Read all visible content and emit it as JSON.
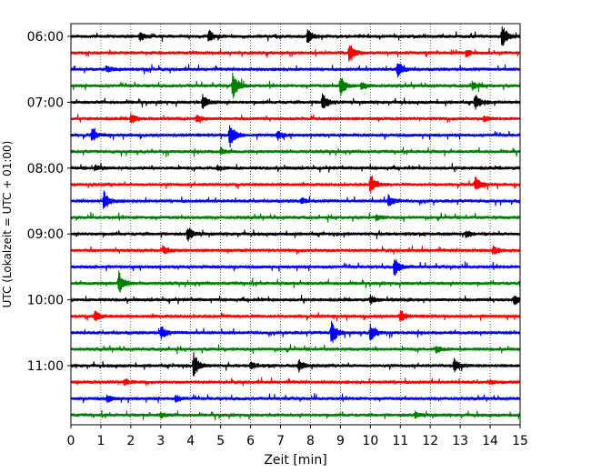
{
  "chart_data": {
    "type": "line",
    "title": "",
    "xlabel": "Zeit  [min]",
    "ylabel": "UTC (Lokalzeit = UTC + 01:00)",
    "xlim": [
      0,
      15
    ],
    "x_ticks": [
      "0",
      "1",
      "2",
      "3",
      "4",
      "5",
      "6",
      "7",
      "8",
      "9",
      "10",
      "11",
      "12",
      "13",
      "14",
      "15"
    ],
    "y_ticks": [
      "06:00",
      "07:00",
      "08:00",
      "09:00",
      "10:00",
      "11:00"
    ],
    "grid": "vertical dotted at each minute",
    "row_interval_min": 15,
    "first_row": "06:00",
    "colors": [
      "#000000",
      "#ff0000",
      "#0000ff",
      "#008000"
    ],
    "rows": [
      {
        "time": "06:00",
        "color": "#000000",
        "events": [
          {
            "t": 4.6,
            "a": 7
          },
          {
            "t": 7.9,
            "a": 8
          },
          {
            "t": 14.4,
            "a": 13
          },
          {
            "t": 2.3,
            "a": 5
          }
        ]
      },
      {
        "time": "06:15",
        "color": "#ff0000",
        "events": [
          {
            "t": 9.3,
            "a": 12
          },
          {
            "t": 13.2,
            "a": 4
          }
        ]
      },
      {
        "time": "06:30",
        "color": "#0000ff",
        "events": [
          {
            "t": 10.9,
            "a": 9
          },
          {
            "t": 1.2,
            "a": 3
          }
        ]
      },
      {
        "time": "06:45",
        "color": "#008000",
        "events": [
          {
            "t": 5.4,
            "a": 16
          },
          {
            "t": 9.0,
            "a": 12
          },
          {
            "t": 9.7,
            "a": 5
          },
          {
            "t": 13.4,
            "a": 5
          }
        ]
      },
      {
        "time": "07:00",
        "color": "#000000",
        "events": [
          {
            "t": 4.4,
            "a": 8
          },
          {
            "t": 8.4,
            "a": 10
          },
          {
            "t": 13.5,
            "a": 9
          }
        ]
      },
      {
        "time": "07:15",
        "color": "#ff0000",
        "events": [
          {
            "t": 2.0,
            "a": 6
          },
          {
            "t": 4.2,
            "a": 4
          },
          {
            "t": 13.8,
            "a": 3
          }
        ]
      },
      {
        "time": "07:30",
        "color": "#0000ff",
        "events": [
          {
            "t": 0.7,
            "a": 8
          },
          {
            "t": 5.3,
            "a": 15
          },
          {
            "t": 6.9,
            "a": 5
          }
        ]
      },
      {
        "time": "07:45",
        "color": "#008000",
        "events": [
          {
            "t": 5.0,
            "a": 4
          }
        ]
      },
      {
        "time": "08:00",
        "color": "#000000",
        "events": [
          {
            "t": 0.8,
            "a": 3
          },
          {
            "t": 4.9,
            "a": 3
          }
        ]
      },
      {
        "time": "08:15",
        "color": "#ff0000",
        "events": [
          {
            "t": 10.0,
            "a": 11
          },
          {
            "t": 13.5,
            "a": 9
          }
        ]
      },
      {
        "time": "08:30",
        "color": "#0000ff",
        "events": [
          {
            "t": 1.1,
            "a": 11
          },
          {
            "t": 10.6,
            "a": 7
          },
          {
            "t": 7.7,
            "a": 4
          }
        ]
      },
      {
        "time": "08:45",
        "color": "#008000",
        "events": [
          {
            "t": 10.2,
            "a": 3
          }
        ]
      },
      {
        "time": "09:00",
        "color": "#000000",
        "events": [
          {
            "t": 3.9,
            "a": 8
          },
          {
            "t": 13.2,
            "a": 4
          }
        ]
      },
      {
        "time": "09:15",
        "color": "#ff0000",
        "events": [
          {
            "t": 14.1,
            "a": 5
          },
          {
            "t": 3.1,
            "a": 4
          }
        ]
      },
      {
        "time": "09:30",
        "color": "#0000ff",
        "events": [
          {
            "t": 10.8,
            "a": 11
          }
        ]
      },
      {
        "time": "09:45",
        "color": "#008000",
        "events": [
          {
            "t": 1.6,
            "a": 14
          },
          {
            "t": 15.0,
            "a": 4
          }
        ]
      },
      {
        "time": "10:00",
        "color": "#000000",
        "events": [
          {
            "t": 14.8,
            "a": 6
          },
          {
            "t": 10.0,
            "a": 5
          }
        ]
      },
      {
        "time": "10:15",
        "color": "#ff0000",
        "events": [
          {
            "t": 0.8,
            "a": 6
          },
          {
            "t": 11.0,
            "a": 7
          }
        ]
      },
      {
        "time": "10:30",
        "color": "#0000ff",
        "events": [
          {
            "t": 3.0,
            "a": 8
          },
          {
            "t": 8.7,
            "a": 14
          },
          {
            "t": 10.0,
            "a": 10
          }
        ]
      },
      {
        "time": "10:45",
        "color": "#008000",
        "events": [
          {
            "t": 12.2,
            "a": 4
          }
        ]
      },
      {
        "time": "11:00",
        "color": "#000000",
        "events": [
          {
            "t": 4.1,
            "a": 14
          },
          {
            "t": 7.6,
            "a": 7
          },
          {
            "t": 12.8,
            "a": 8
          },
          {
            "t": 6.0,
            "a": 4
          }
        ]
      },
      {
        "time": "11:15",
        "color": "#ff0000",
        "events": [
          {
            "t": 1.8,
            "a": 4
          },
          {
            "t": 14.0,
            "a": 2
          }
        ]
      },
      {
        "time": "11:30",
        "color": "#0000ff",
        "events": [
          {
            "t": 1.2,
            "a": 4
          },
          {
            "t": 3.5,
            "a": 4
          }
        ]
      },
      {
        "time": "11:45",
        "color": "#008000",
        "events": [
          {
            "t": 11.5,
            "a": 3
          },
          {
            "t": 3.0,
            "a": 3
          }
        ]
      }
    ]
  }
}
